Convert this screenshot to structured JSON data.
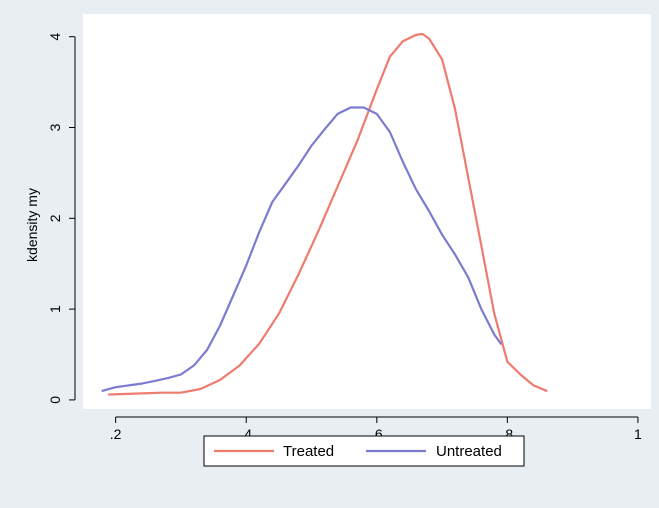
{
  "chart_data": {
    "type": "line",
    "title": "",
    "xlabel": "",
    "ylabel": "kdensity my",
    "xlim": [
      0.15,
      1.02
    ],
    "ylim": [
      -0.1,
      4.25
    ],
    "x_ticks": [
      0.2,
      0.4,
      0.6,
      0.8,
      1.0
    ],
    "x_tick_labels": [
      ".2",
      ".4",
      ".6",
      ".8",
      "1"
    ],
    "y_ticks": [
      0,
      1,
      2,
      3,
      4
    ],
    "y_tick_labels": [
      "0",
      "1",
      "2",
      "3",
      "4"
    ],
    "grid": false,
    "legend_position": "bottom",
    "series": [
      {
        "name": "Treated",
        "color": "#ef7b6e",
        "x": [
          0.19,
          0.23,
          0.27,
          0.3,
          0.33,
          0.36,
          0.39,
          0.42,
          0.45,
          0.48,
          0.51,
          0.54,
          0.57,
          0.6,
          0.62,
          0.64,
          0.66,
          0.67,
          0.68,
          0.7,
          0.72,
          0.74,
          0.76,
          0.78,
          0.8,
          0.82,
          0.84,
          0.86
        ],
        "y": [
          0.06,
          0.07,
          0.08,
          0.08,
          0.12,
          0.22,
          0.38,
          0.62,
          0.95,
          1.38,
          1.85,
          2.35,
          2.85,
          3.42,
          3.78,
          3.95,
          4.02,
          4.03,
          3.98,
          3.75,
          3.2,
          2.45,
          1.7,
          0.95,
          0.42,
          0.28,
          0.16,
          0.1
        ]
      },
      {
        "name": "Untreated",
        "color": "#7b7bcf",
        "x": [
          0.18,
          0.2,
          0.22,
          0.24,
          0.26,
          0.28,
          0.3,
          0.32,
          0.34,
          0.36,
          0.38,
          0.4,
          0.42,
          0.44,
          0.46,
          0.48,
          0.5,
          0.52,
          0.54,
          0.56,
          0.58,
          0.6,
          0.62,
          0.64,
          0.66,
          0.68,
          0.7,
          0.72,
          0.74,
          0.76,
          0.78,
          0.79
        ],
        "y": [
          0.1,
          0.14,
          0.16,
          0.18,
          0.21,
          0.24,
          0.28,
          0.38,
          0.55,
          0.82,
          1.15,
          1.48,
          1.85,
          2.18,
          2.38,
          2.58,
          2.8,
          2.98,
          3.15,
          3.22,
          3.22,
          3.15,
          2.95,
          2.62,
          2.32,
          2.08,
          1.82,
          1.6,
          1.35,
          1.0,
          0.72,
          0.62
        ]
      }
    ]
  }
}
